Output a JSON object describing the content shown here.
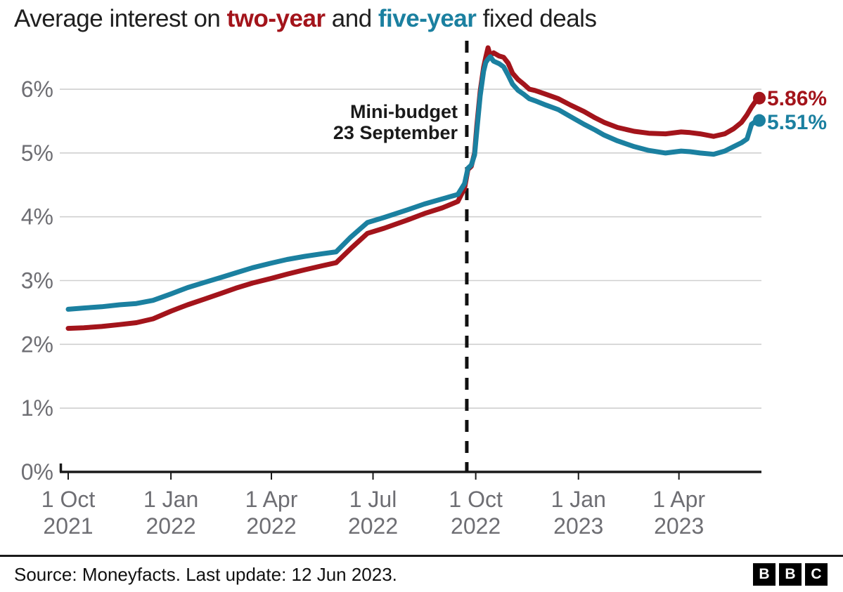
{
  "title": {
    "prefix": "Average interest on ",
    "series1": "two-year",
    "mid": " and ",
    "series2": "five-year",
    "suffix": " fixed deals"
  },
  "colors": {
    "two_year": "#a3141b",
    "five_year": "#1b80a0",
    "grid": "#cfcfcf",
    "axis": "#1a1a1a",
    "tick_label": "#6e6e73",
    "annotation_line": "#111111"
  },
  "chart_data": {
    "type": "line",
    "title": "Average interest on two-year and five-year fixed deals",
    "x_unit": "days since 1 Oct 2021",
    "x_start_date": "1 Oct 2021",
    "x_end_date": "12 Jun 2023",
    "x_max_days": 619,
    "ylim": [
      0,
      6.8
    ],
    "grid": true,
    "y_ticks": [
      {
        "value": 0,
        "label": "0%"
      },
      {
        "value": 1,
        "label": "1%"
      },
      {
        "value": 2,
        "label": "2%"
      },
      {
        "value": 3,
        "label": "3%"
      },
      {
        "value": 4,
        "label": "4%"
      },
      {
        "value": 5,
        "label": "5%"
      },
      {
        "value": 6,
        "label": "6%"
      }
    ],
    "x_ticks": [
      {
        "day": 0,
        "line1": "1 Oct",
        "line2": "2021"
      },
      {
        "day": 92,
        "line1": "1 Jan",
        "line2": "2022"
      },
      {
        "day": 182,
        "line1": "1 Apr",
        "line2": "2022"
      },
      {
        "day": 273,
        "line1": "1 Jul",
        "line2": "2022"
      },
      {
        "day": 365,
        "line1": "1 Oct",
        "line2": "2022"
      },
      {
        "day": 457,
        "line1": "1 Jan",
        "line2": "2023"
      },
      {
        "day": 547,
        "line1": "1 Apr",
        "line2": "2023"
      }
    ],
    "annotation": {
      "line1": "Mini-budget",
      "line2": "23 September",
      "day": 357
    },
    "series": [
      {
        "name": "two-year",
        "color_key": "two_year",
        "end_label": "5.86%",
        "end_value": 5.86,
        "points": [
          [
            0,
            2.25
          ],
          [
            14,
            2.26
          ],
          [
            30,
            2.28
          ],
          [
            46,
            2.31
          ],
          [
            61,
            2.34
          ],
          [
            76,
            2.4
          ],
          [
            92,
            2.52
          ],
          [
            107,
            2.62
          ],
          [
            122,
            2.71
          ],
          [
            137,
            2.8
          ],
          [
            150,
            2.88
          ],
          [
            165,
            2.96
          ],
          [
            181,
            3.03
          ],
          [
            196,
            3.1
          ],
          [
            212,
            3.17
          ],
          [
            227,
            3.23
          ],
          [
            240,
            3.28
          ],
          [
            253,
            3.5
          ],
          [
            268,
            3.74
          ],
          [
            283,
            3.82
          ],
          [
            304,
            3.95
          ],
          [
            319,
            4.05
          ],
          [
            335,
            4.14
          ],
          [
            349,
            4.24
          ],
          [
            355,
            4.45
          ],
          [
            358,
            4.74
          ],
          [
            361,
            4.79
          ],
          [
            364,
            5.0
          ],
          [
            366,
            5.43
          ],
          [
            369,
            5.97
          ],
          [
            372,
            6.34
          ],
          [
            374,
            6.5
          ],
          [
            376,
            6.65
          ],
          [
            378,
            6.53
          ],
          [
            381,
            6.57
          ],
          [
            386,
            6.52
          ],
          [
            390,
            6.5
          ],
          [
            394,
            6.41
          ],
          [
            398,
            6.25
          ],
          [
            403,
            6.15
          ],
          [
            408,
            6.08
          ],
          [
            413,
            6.0
          ],
          [
            418,
            5.98
          ],
          [
            428,
            5.92
          ],
          [
            439,
            5.85
          ],
          [
            450,
            5.75
          ],
          [
            462,
            5.65
          ],
          [
            472,
            5.55
          ],
          [
            480,
            5.48
          ],
          [
            492,
            5.4
          ],
          [
            507,
            5.34
          ],
          [
            520,
            5.31
          ],
          [
            535,
            5.3
          ],
          [
            549,
            5.33
          ],
          [
            557,
            5.32
          ],
          [
            566,
            5.3
          ],
          [
            578,
            5.26
          ],
          [
            588,
            5.3
          ],
          [
            596,
            5.38
          ],
          [
            603,
            5.48
          ],
          [
            608,
            5.6
          ],
          [
            612,
            5.72
          ],
          [
            616,
            5.82
          ],
          [
            619,
            5.86
          ]
        ]
      },
      {
        "name": "five-year",
        "color_key": "five_year",
        "end_label": "5.51%",
        "end_value": 5.51,
        "points": [
          [
            0,
            2.55
          ],
          [
            14,
            2.57
          ],
          [
            30,
            2.59
          ],
          [
            46,
            2.62
          ],
          [
            61,
            2.64
          ],
          [
            76,
            2.69
          ],
          [
            92,
            2.79
          ],
          [
            107,
            2.89
          ],
          [
            122,
            2.97
          ],
          [
            137,
            3.05
          ],
          [
            150,
            3.12
          ],
          [
            165,
            3.2
          ],
          [
            181,
            3.27
          ],
          [
            196,
            3.33
          ],
          [
            212,
            3.38
          ],
          [
            227,
            3.42
          ],
          [
            240,
            3.45
          ],
          [
            253,
            3.68
          ],
          [
            268,
            3.91
          ],
          [
            283,
            3.99
          ],
          [
            304,
            4.11
          ],
          [
            319,
            4.2
          ],
          [
            335,
            4.28
          ],
          [
            349,
            4.35
          ],
          [
            355,
            4.52
          ],
          [
            358,
            4.76
          ],
          [
            361,
            4.81
          ],
          [
            364,
            4.97
          ],
          [
            366,
            5.35
          ],
          [
            369,
            5.9
          ],
          [
            372,
            6.28
          ],
          [
            374,
            6.42
          ],
          [
            376,
            6.47
          ],
          [
            378,
            6.51
          ],
          [
            381,
            6.44
          ],
          [
            386,
            6.4
          ],
          [
            390,
            6.35
          ],
          [
            394,
            6.22
          ],
          [
            398,
            6.08
          ],
          [
            403,
            5.98
          ],
          [
            408,
            5.92
          ],
          [
            413,
            5.85
          ],
          [
            418,
            5.82
          ],
          [
            428,
            5.75
          ],
          [
            439,
            5.68
          ],
          [
            450,
            5.57
          ],
          [
            462,
            5.45
          ],
          [
            472,
            5.36
          ],
          [
            480,
            5.28
          ],
          [
            492,
            5.19
          ],
          [
            507,
            5.1
          ],
          [
            520,
            5.04
          ],
          [
            535,
            5.0
          ],
          [
            549,
            5.03
          ],
          [
            557,
            5.02
          ],
          [
            566,
            5.0
          ],
          [
            578,
            4.98
          ],
          [
            588,
            5.03
          ],
          [
            596,
            5.1
          ],
          [
            603,
            5.16
          ],
          [
            608,
            5.22
          ],
          [
            612,
            5.45
          ],
          [
            616,
            5.5
          ],
          [
            619,
            5.51
          ]
        ]
      }
    ]
  },
  "footer": {
    "source": "Source: Moneyfacts. Last update: 12 Jun 2023.",
    "logo_letters": [
      "B",
      "B",
      "C"
    ]
  }
}
